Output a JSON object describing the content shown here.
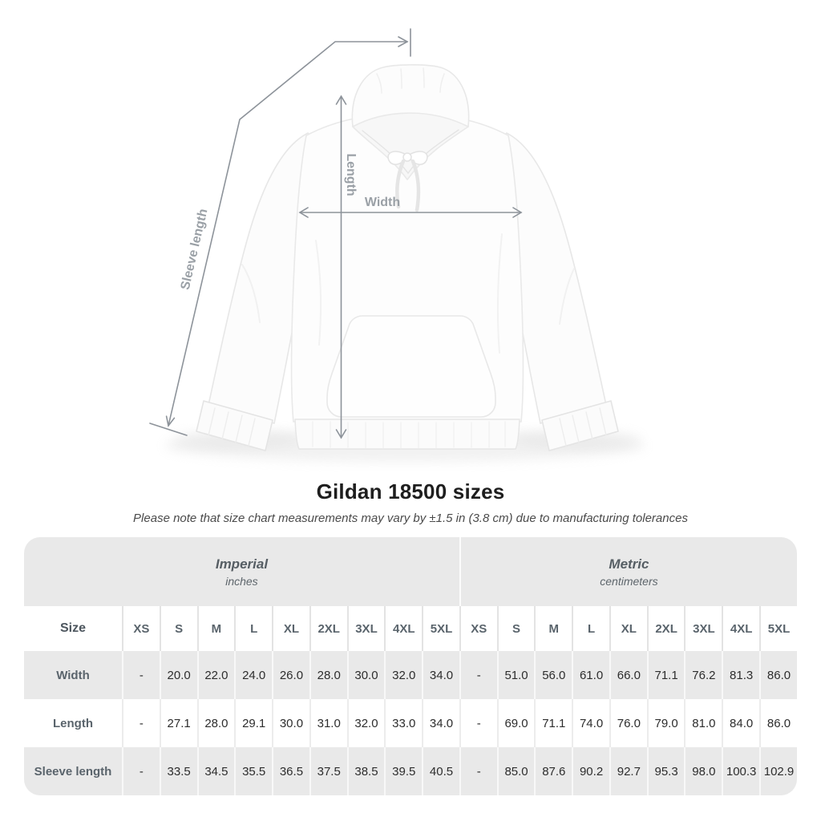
{
  "title": "Gildan 18500 sizes",
  "subtitle": "Please note that size chart measurements may vary by ±1.5 in (3.8 cm) due to manufacturing tolerances",
  "diagram": {
    "labels": {
      "width": "Width",
      "length": "Length",
      "sleeve": "Sleeve length"
    },
    "line_color": "#8d939a",
    "label_color": "#9aa0a6",
    "garment": "white pullover hoodie, front view"
  },
  "table": {
    "size_header": "Size",
    "sections": [
      {
        "label": "Imperial",
        "sublabel": "inches"
      },
      {
        "label": "Metric",
        "sublabel": "centimeters"
      }
    ],
    "sizes": [
      "XS",
      "S",
      "M",
      "L",
      "XL",
      "2XL",
      "3XL",
      "4XL",
      "5XL"
    ],
    "rows": [
      {
        "label": "Width",
        "imperial": [
          "-",
          "20.0",
          "22.0",
          "24.0",
          "26.0",
          "28.0",
          "30.0",
          "32.0",
          "34.0"
        ],
        "metric": [
          "-",
          "51.0",
          "56.0",
          "61.0",
          "66.0",
          "71.1",
          "76.2",
          "81.3",
          "86.0"
        ]
      },
      {
        "label": "Length",
        "imperial": [
          "-",
          "27.1",
          "28.0",
          "29.1",
          "30.0",
          "31.0",
          "32.0",
          "33.0",
          "34.0"
        ],
        "metric": [
          "-",
          "69.0",
          "71.1",
          "74.0",
          "76.0",
          "79.0",
          "81.0",
          "84.0",
          "86.0"
        ]
      },
      {
        "label": "Sleeve length",
        "imperial": [
          "-",
          "33.5",
          "34.5",
          "35.5",
          "36.5",
          "37.5",
          "38.5",
          "39.5",
          "40.5"
        ],
        "metric": [
          "-",
          "85.0",
          "87.6",
          "90.2",
          "92.7",
          "95.3",
          "98.0",
          "100.3",
          "102.9"
        ]
      }
    ],
    "colors": {
      "band_bg": "#e9e9e9",
      "alt_row_bg": "#e9e9e9",
      "header_text": "#5a646c",
      "value_text": "#2d2d2d"
    }
  }
}
